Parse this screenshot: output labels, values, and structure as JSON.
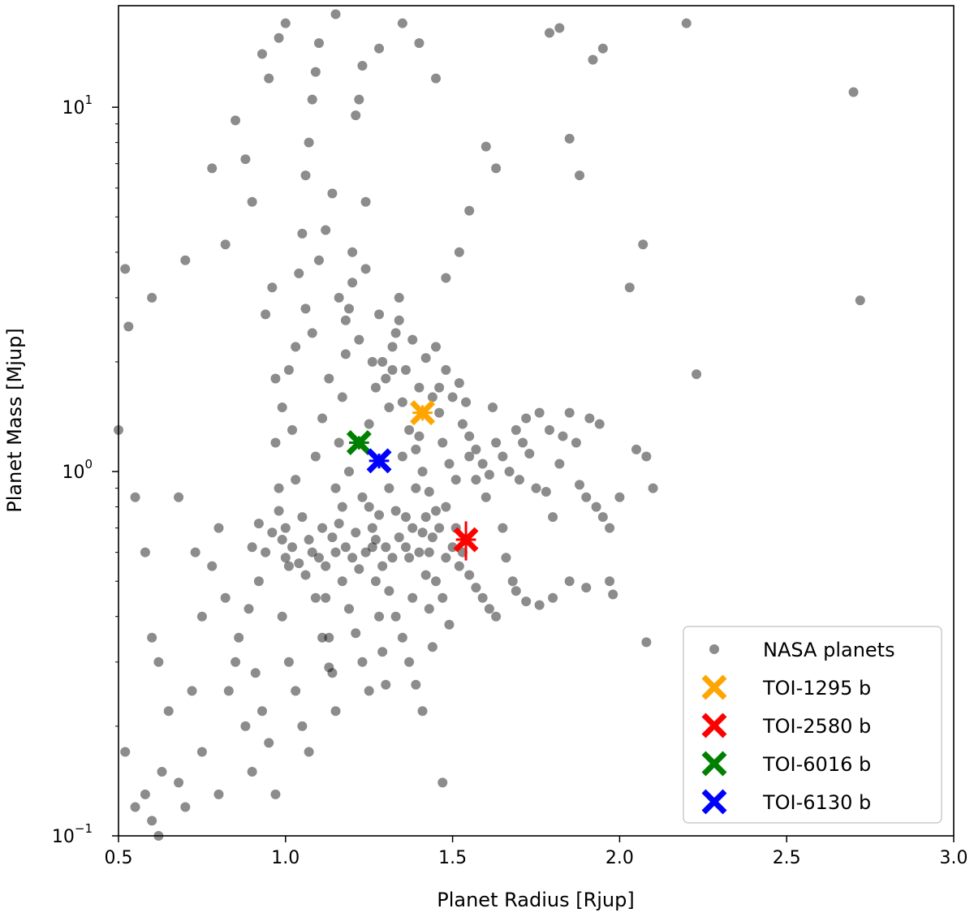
{
  "chart_data": {
    "type": "scatter",
    "title": "",
    "xlabel": "Planet Radius [Rjup]",
    "ylabel": "Planet Mass [Mjup]",
    "xlim": [
      0.5,
      3.0
    ],
    "ylim": [
      0.1,
      19
    ],
    "yscale": "log",
    "grid": false,
    "legend_position": "bottom-right",
    "x_ticks": [
      {
        "value": 0.5,
        "label": "0.5"
      },
      {
        "value": 1.0,
        "label": "1.0"
      },
      {
        "value": 1.5,
        "label": "1.5"
      },
      {
        "value": 2.0,
        "label": "2.0"
      },
      {
        "value": 2.5,
        "label": "2.5"
      },
      {
        "value": 3.0,
        "label": "3.0"
      }
    ],
    "y_ticks": [
      {
        "value": 0.1,
        "base": "10",
        "exp": "−1"
      },
      {
        "value": 1,
        "base": "10",
        "exp": "0"
      },
      {
        "value": 10,
        "base": "10",
        "exp": "1"
      }
    ],
    "series": [
      {
        "name": "NASA planets",
        "marker": "circle",
        "color": "#000000",
        "opacity": 0.45,
        "points": [
          [
            0.52,
            3.6
          ],
          [
            0.53,
            2.5
          ],
          [
            0.5,
            1.3
          ],
          [
            0.52,
            0.17
          ],
          [
            0.55,
            0.12
          ],
          [
            0.58,
            0.13
          ],
          [
            0.6,
            0.11
          ],
          [
            0.62,
            0.1
          ],
          [
            0.63,
            0.15
          ],
          [
            0.6,
            0.35
          ],
          [
            0.55,
            0.85
          ],
          [
            0.58,
            0.6
          ],
          [
            0.62,
            0.3
          ],
          [
            0.65,
            0.22
          ],
          [
            0.68,
            0.14
          ],
          [
            0.7,
            0.12
          ],
          [
            0.72,
            0.25
          ],
          [
            0.75,
            0.4
          ],
          [
            0.78,
            0.55
          ],
          [
            0.8,
            0.7
          ],
          [
            0.82,
            0.45
          ],
          [
            0.85,
            0.3
          ],
          [
            0.88,
            0.2
          ],
          [
            0.9,
            0.15
          ],
          [
            0.92,
            0.5
          ],
          [
            0.7,
            3.8
          ],
          [
            0.78,
            6.8
          ],
          [
            0.82,
            4.2
          ],
          [
            0.85,
            9.2
          ],
          [
            0.88,
            7.2
          ],
          [
            0.9,
            5.5
          ],
          [
            0.93,
            14
          ],
          [
            0.95,
            12
          ],
          [
            0.94,
            2.7
          ],
          [
            0.96,
            3.2
          ],
          [
            0.97,
            1.8
          ],
          [
            0.98,
            0.9
          ],
          [
            0.99,
            0.65
          ],
          [
            1.0,
            0.58
          ],
          [
            1.01,
            0.55
          ],
          [
            1.02,
            1.3
          ],
          [
            1.03,
            2.2
          ],
          [
            1.04,
            3.5
          ],
          [
            1.05,
            4.5
          ],
          [
            1.06,
            6.5
          ],
          [
            1.07,
            8.0
          ],
          [
            1.08,
            10.5
          ],
          [
            1.09,
            12.5
          ],
          [
            1.1,
            15.0
          ],
          [
            1.11,
            0.7
          ],
          [
            1.12,
            0.45
          ],
          [
            1.13,
            0.35
          ],
          [
            1.14,
            0.28
          ],
          [
            1.15,
            0.22
          ],
          [
            1.16,
            1.2
          ],
          [
            1.17,
            1.6
          ],
          [
            1.18,
            2.1
          ],
          [
            1.19,
            2.8
          ],
          [
            1.2,
            3.3
          ],
          [
            1.21,
            9.5
          ],
          [
            1.22,
            10.5
          ],
          [
            1.23,
            13.0
          ],
          [
            1.24,
            5.5
          ],
          [
            1.25,
            0.8
          ],
          [
            1.26,
            0.62
          ],
          [
            1.27,
            0.5
          ],
          [
            1.28,
            0.4
          ],
          [
            1.29,
            0.32
          ],
          [
            1.3,
            0.26
          ],
          [
            1.31,
            1.5
          ],
          [
            1.32,
            1.9
          ],
          [
            1.33,
            2.4
          ],
          [
            1.34,
            3.0
          ],
          [
            1.35,
            1.1
          ],
          [
            1.36,
            0.75
          ],
          [
            1.37,
            0.58
          ],
          [
            1.38,
            0.45
          ],
          [
            1.39,
            0.9
          ],
          [
            1.4,
            1.25
          ],
          [
            1.41,
            0.68
          ],
          [
            1.42,
            0.52
          ],
          [
            1.43,
            0.42
          ],
          [
            1.44,
            0.33
          ],
          [
            1.45,
            2.2
          ],
          [
            1.46,
            1.7
          ],
          [
            1.47,
            0.14
          ],
          [
            1.48,
            0.8
          ],
          [
            1.5,
            0.62
          ],
          [
            1.52,
            0.55
          ],
          [
            1.55,
            1.1
          ],
          [
            1.57,
            0.95
          ],
          [
            1.6,
            0.85
          ],
          [
            1.62,
            1.5
          ],
          [
            1.65,
            0.7
          ],
          [
            1.68,
            0.5
          ],
          [
            1.7,
            0.95
          ],
          [
            1.72,
            1.4
          ],
          [
            1.75,
            0.9
          ],
          [
            1.78,
            0.88
          ],
          [
            1.8,
            0.75
          ],
          [
            1.82,
            1.05
          ],
          [
            1.85,
            1.45
          ],
          [
            1.88,
            0.92
          ],
          [
            1.9,
            0.85
          ],
          [
            1.93,
            0.8
          ],
          [
            1.95,
            0.75
          ],
          [
            1.97,
            0.7
          ],
          [
            2.0,
            0.85
          ],
          [
            2.05,
            1.15
          ],
          [
            2.08,
            1.1
          ],
          [
            2.1,
            0.9
          ],
          [
            2.03,
            3.2
          ],
          [
            2.07,
            4.2
          ],
          [
            2.23,
            1.85
          ],
          [
            2.2,
            17
          ],
          [
            2.7,
            11
          ],
          [
            2.72,
            2.95
          ],
          [
            2.08,
            0.34
          ],
          [
            1.92,
            13.5
          ],
          [
            1.95,
            14.5
          ],
          [
            1.85,
            8.2
          ],
          [
            1.88,
            6.5
          ],
          [
            1.79,
            16
          ],
          [
            1.82,
            16.5
          ],
          [
            1.6,
            7.8
          ],
          [
            1.63,
            6.8
          ],
          [
            1.55,
            5.2
          ],
          [
            1.52,
            4.0
          ],
          [
            1.48,
            3.4
          ],
          [
            1.45,
            12.0
          ],
          [
            1.4,
            15.0
          ],
          [
            1.35,
            17.0
          ],
          [
            1.28,
            14.5
          ],
          [
            1.15,
            18.0
          ],
          [
            1.0,
            17.0
          ],
          [
            0.98,
            15.5
          ],
          [
            0.6,
            3.0
          ],
          [
            0.68,
            0.85
          ],
          [
            0.73,
            0.6
          ],
          [
            0.75,
            0.17
          ],
          [
            0.8,
            0.13
          ],
          [
            0.83,
            0.25
          ],
          [
            0.86,
            0.35
          ],
          [
            0.89,
            0.42
          ],
          [
            0.91,
            0.28
          ],
          [
            0.93,
            0.22
          ],
          [
            0.95,
            0.18
          ],
          [
            0.97,
            0.13
          ],
          [
            0.99,
            0.4
          ],
          [
            1.01,
            0.3
          ],
          [
            1.03,
            0.25
          ],
          [
            1.05,
            0.2
          ],
          [
            1.07,
            0.17
          ],
          [
            1.09,
            0.45
          ],
          [
            1.11,
            0.35
          ],
          [
            1.13,
            0.29
          ],
          [
            1.15,
            0.6
          ],
          [
            1.17,
            0.5
          ],
          [
            1.19,
            0.42
          ],
          [
            1.21,
            0.36
          ],
          [
            1.23,
            0.3
          ],
          [
            1.25,
            0.25
          ],
          [
            1.27,
            0.65
          ],
          [
            1.29,
            0.55
          ],
          [
            1.31,
            0.47
          ],
          [
            1.33,
            0.4
          ],
          [
            1.35,
            0.35
          ],
          [
            1.37,
            0.3
          ],
          [
            1.39,
            0.26
          ],
          [
            1.41,
            0.22
          ],
          [
            1.43,
            0.6
          ],
          [
            1.45,
            0.5
          ],
          [
            1.47,
            0.45
          ],
          [
            1.49,
            0.38
          ],
          [
            1.51,
            0.7
          ],
          [
            1.53,
            0.6
          ],
          [
            1.55,
            0.52
          ],
          [
            1.57,
            0.48
          ],
          [
            1.59,
            0.45
          ],
          [
            1.61,
            0.42
          ],
          [
            1.63,
            0.4
          ],
          [
            1.66,
            0.58
          ],
          [
            1.69,
            0.47
          ],
          [
            1.72,
            0.44
          ],
          [
            1.76,
            0.43
          ],
          [
            1.8,
            0.45
          ],
          [
            1.85,
            0.5
          ],
          [
            1.9,
            0.48
          ],
          [
            1.98,
            0.46
          ],
          [
            1.97,
            0.5
          ],
          [
            0.97,
            1.2
          ],
          [
            0.99,
            1.5
          ],
          [
            1.01,
            1.9
          ],
          [
            1.03,
            0.95
          ],
          [
            1.05,
            0.75
          ],
          [
            1.07,
            0.65
          ],
          [
            1.09,
            1.1
          ],
          [
            1.11,
            1.4
          ],
          [
            1.13,
            1.8
          ],
          [
            1.15,
            0.9
          ],
          [
            1.17,
            0.8
          ],
          [
            1.19,
            1.0
          ],
          [
            1.21,
            0.68
          ],
          [
            1.23,
            0.85
          ],
          [
            1.25,
            1.35
          ],
          [
            1.27,
            1.7
          ],
          [
            1.29,
            2.0
          ],
          [
            1.31,
            0.9
          ],
          [
            1.33,
            0.78
          ],
          [
            1.35,
            1.55
          ],
          [
            1.37,
            1.3
          ],
          [
            1.39,
            1.15
          ],
          [
            1.41,
            1.0
          ],
          [
            1.43,
            0.88
          ],
          [
            1.45,
            0.78
          ],
          [
            1.47,
            1.2
          ],
          [
            1.49,
            1.05
          ],
          [
            1.51,
            0.95
          ],
          [
            1.53,
            1.35
          ],
          [
            1.55,
            1.25
          ],
          [
            1.57,
            1.15
          ],
          [
            1.59,
            1.05
          ],
          [
            1.61,
            0.98
          ],
          [
            1.63,
            1.2
          ],
          [
            1.65,
            1.1
          ],
          [
            1.67,
            1.0
          ],
          [
            1.69,
            1.3
          ],
          [
            1.71,
            1.2
          ],
          [
            1.73,
            1.12
          ],
          [
            1.76,
            1.45
          ],
          [
            1.79,
            1.3
          ],
          [
            1.83,
            1.25
          ],
          [
            1.87,
            1.2
          ],
          [
            1.91,
            1.4
          ],
          [
            1.94,
            1.35
          ],
          [
            1.06,
            2.8
          ],
          [
            1.08,
            2.4
          ],
          [
            1.1,
            3.8
          ],
          [
            1.12,
            4.6
          ],
          [
            1.14,
            5.8
          ],
          [
            1.16,
            3.0
          ],
          [
            1.18,
            2.6
          ],
          [
            1.2,
            4.0
          ],
          [
            1.22,
            2.3
          ],
          [
            1.24,
            3.6
          ],
          [
            1.26,
            2.0
          ],
          [
            1.28,
            2.7
          ],
          [
            1.3,
            1.8
          ],
          [
            1.32,
            2.2
          ],
          [
            1.34,
            2.6
          ],
          [
            1.36,
            1.9
          ],
          [
            1.38,
            2.3
          ],
          [
            1.4,
            1.7
          ],
          [
            1.42,
            2.05
          ],
          [
            1.44,
            1.6
          ],
          [
            1.46,
            1.45
          ],
          [
            1.48,
            1.9
          ],
          [
            1.5,
            1.6
          ],
          [
            1.52,
            1.75
          ],
          [
            1.54,
            1.55
          ],
          [
            0.9,
            0.62
          ],
          [
            0.92,
            0.72
          ],
          [
            0.94,
            0.6
          ],
          [
            0.96,
            0.68
          ],
          [
            0.98,
            0.78
          ],
          [
            1.0,
            0.7
          ],
          [
            1.02,
            0.62
          ],
          [
            1.04,
            0.56
          ],
          [
            1.06,
            0.52
          ],
          [
            1.08,
            0.6
          ],
          [
            1.1,
            0.58
          ],
          [
            1.12,
            0.55
          ],
          [
            1.14,
            0.66
          ],
          [
            1.16,
            0.72
          ],
          [
            1.18,
            0.62
          ],
          [
            1.2,
            0.58
          ],
          [
            1.22,
            0.54
          ],
          [
            1.24,
            0.6
          ],
          [
            1.26,
            0.7
          ],
          [
            1.28,
            0.76
          ],
          [
            1.3,
            0.62
          ],
          [
            1.32,
            0.58
          ],
          [
            1.34,
            0.66
          ],
          [
            1.36,
            0.62
          ],
          [
            1.38,
            0.7
          ],
          [
            1.4,
            0.6
          ],
          [
            1.42,
            0.75
          ],
          [
            1.44,
            0.66
          ],
          [
            1.46,
            0.7
          ],
          [
            1.48,
            0.58
          ]
        ]
      },
      {
        "name": "TOI-1295 b",
        "marker": "x",
        "color": "#FFA500",
        "points": [
          [
            1.41,
            1.45
          ]
        ],
        "xerr": [
          0.03
        ],
        "yerr": [
          0.07
        ]
      },
      {
        "name": "TOI-2580 b",
        "marker": "x",
        "color": "#FF0000",
        "points": [
          [
            1.54,
            0.65
          ]
        ],
        "xerr": [
          0.03
        ],
        "yerr": [
          0.08
        ]
      },
      {
        "name": "TOI-6016 b",
        "marker": "x",
        "color": "#008000",
        "points": [
          [
            1.22,
            1.2
          ]
        ],
        "xerr": [
          0.03
        ],
        "yerr": [
          0.05
        ]
      },
      {
        "name": "TOI-6130 b",
        "marker": "x",
        "color": "#0000FF",
        "points": [
          [
            1.28,
            1.07
          ]
        ],
        "xerr": [
          0.03
        ],
        "yerr": [
          0.05
        ]
      }
    ]
  }
}
